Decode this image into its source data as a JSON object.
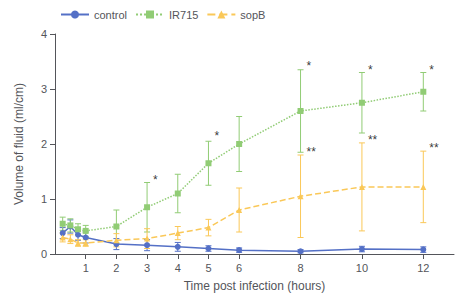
{
  "chart_data": {
    "type": "line",
    "xlabel": "Time post infection (hours)",
    "ylabel": "Volume of fluid (ml/cm)",
    "xlim": [
      0,
      13
    ],
    "ylim": [
      0,
      4
    ],
    "xticks": [
      1,
      2,
      3,
      4,
      5,
      6,
      8,
      10,
      12
    ],
    "yticks": [
      0,
      1,
      2,
      3,
      4
    ],
    "grid": false,
    "legend": "upper left",
    "x": [
      0.25,
      0.5,
      0.75,
      1.0,
      2,
      3,
      4,
      5,
      6,
      8,
      10,
      12
    ],
    "series": [
      {
        "name": "control",
        "marker": "circle",
        "line_style": "solid",
        "values": [
          0.38,
          0.5,
          0.35,
          0.3,
          0.18,
          0.16,
          0.13,
          0.1,
          0.07,
          0.05,
          0.09,
          0.08
        ],
        "yerr": [
          0.1,
          0.12,
          0.1,
          0.1,
          0.1,
          0.1,
          0.08,
          0.05,
          0.04,
          0.03,
          0.05,
          0.05
        ]
      },
      {
        "name": "IR715",
        "marker": "square",
        "line_style": "dotted",
        "values": [
          0.55,
          0.52,
          0.45,
          0.42,
          0.5,
          0.85,
          1.1,
          1.65,
          2.0,
          2.6,
          2.75,
          2.95
        ],
        "yerr": [
          0.12,
          0.12,
          0.1,
          0.1,
          0.3,
          0.45,
          0.35,
          0.4,
          0.5,
          0.75,
          0.55,
          0.35
        ]
      },
      {
        "name": "sopB",
        "marker": "triangle",
        "line_style": "dashed",
        "values": [
          0.3,
          0.27,
          0.2,
          0.2,
          0.25,
          0.28,
          0.38,
          0.48,
          0.8,
          1.05,
          1.22,
          1.22
        ],
        "yerr": [
          0.08,
          0.08,
          0.06,
          0.06,
          0.12,
          0.18,
          0.12,
          0.15,
          0.4,
          0.75,
          0.8,
          0.65
        ]
      }
    ],
    "annotations": [
      {
        "x": 3,
        "y": 1.35,
        "text": "*"
      },
      {
        "x": 5,
        "y": 2.15,
        "text": "*"
      },
      {
        "x": 8,
        "y": 3.42,
        "text": "*"
      },
      {
        "x": 10,
        "y": 3.35,
        "text": "*"
      },
      {
        "x": 12,
        "y": 3.35,
        "text": "*"
      },
      {
        "x": 8,
        "y": 1.85,
        "text": "**"
      },
      {
        "x": 10,
        "y": 2.08,
        "text": "**"
      },
      {
        "x": 12,
        "y": 1.92,
        "text": "**"
      }
    ]
  }
}
